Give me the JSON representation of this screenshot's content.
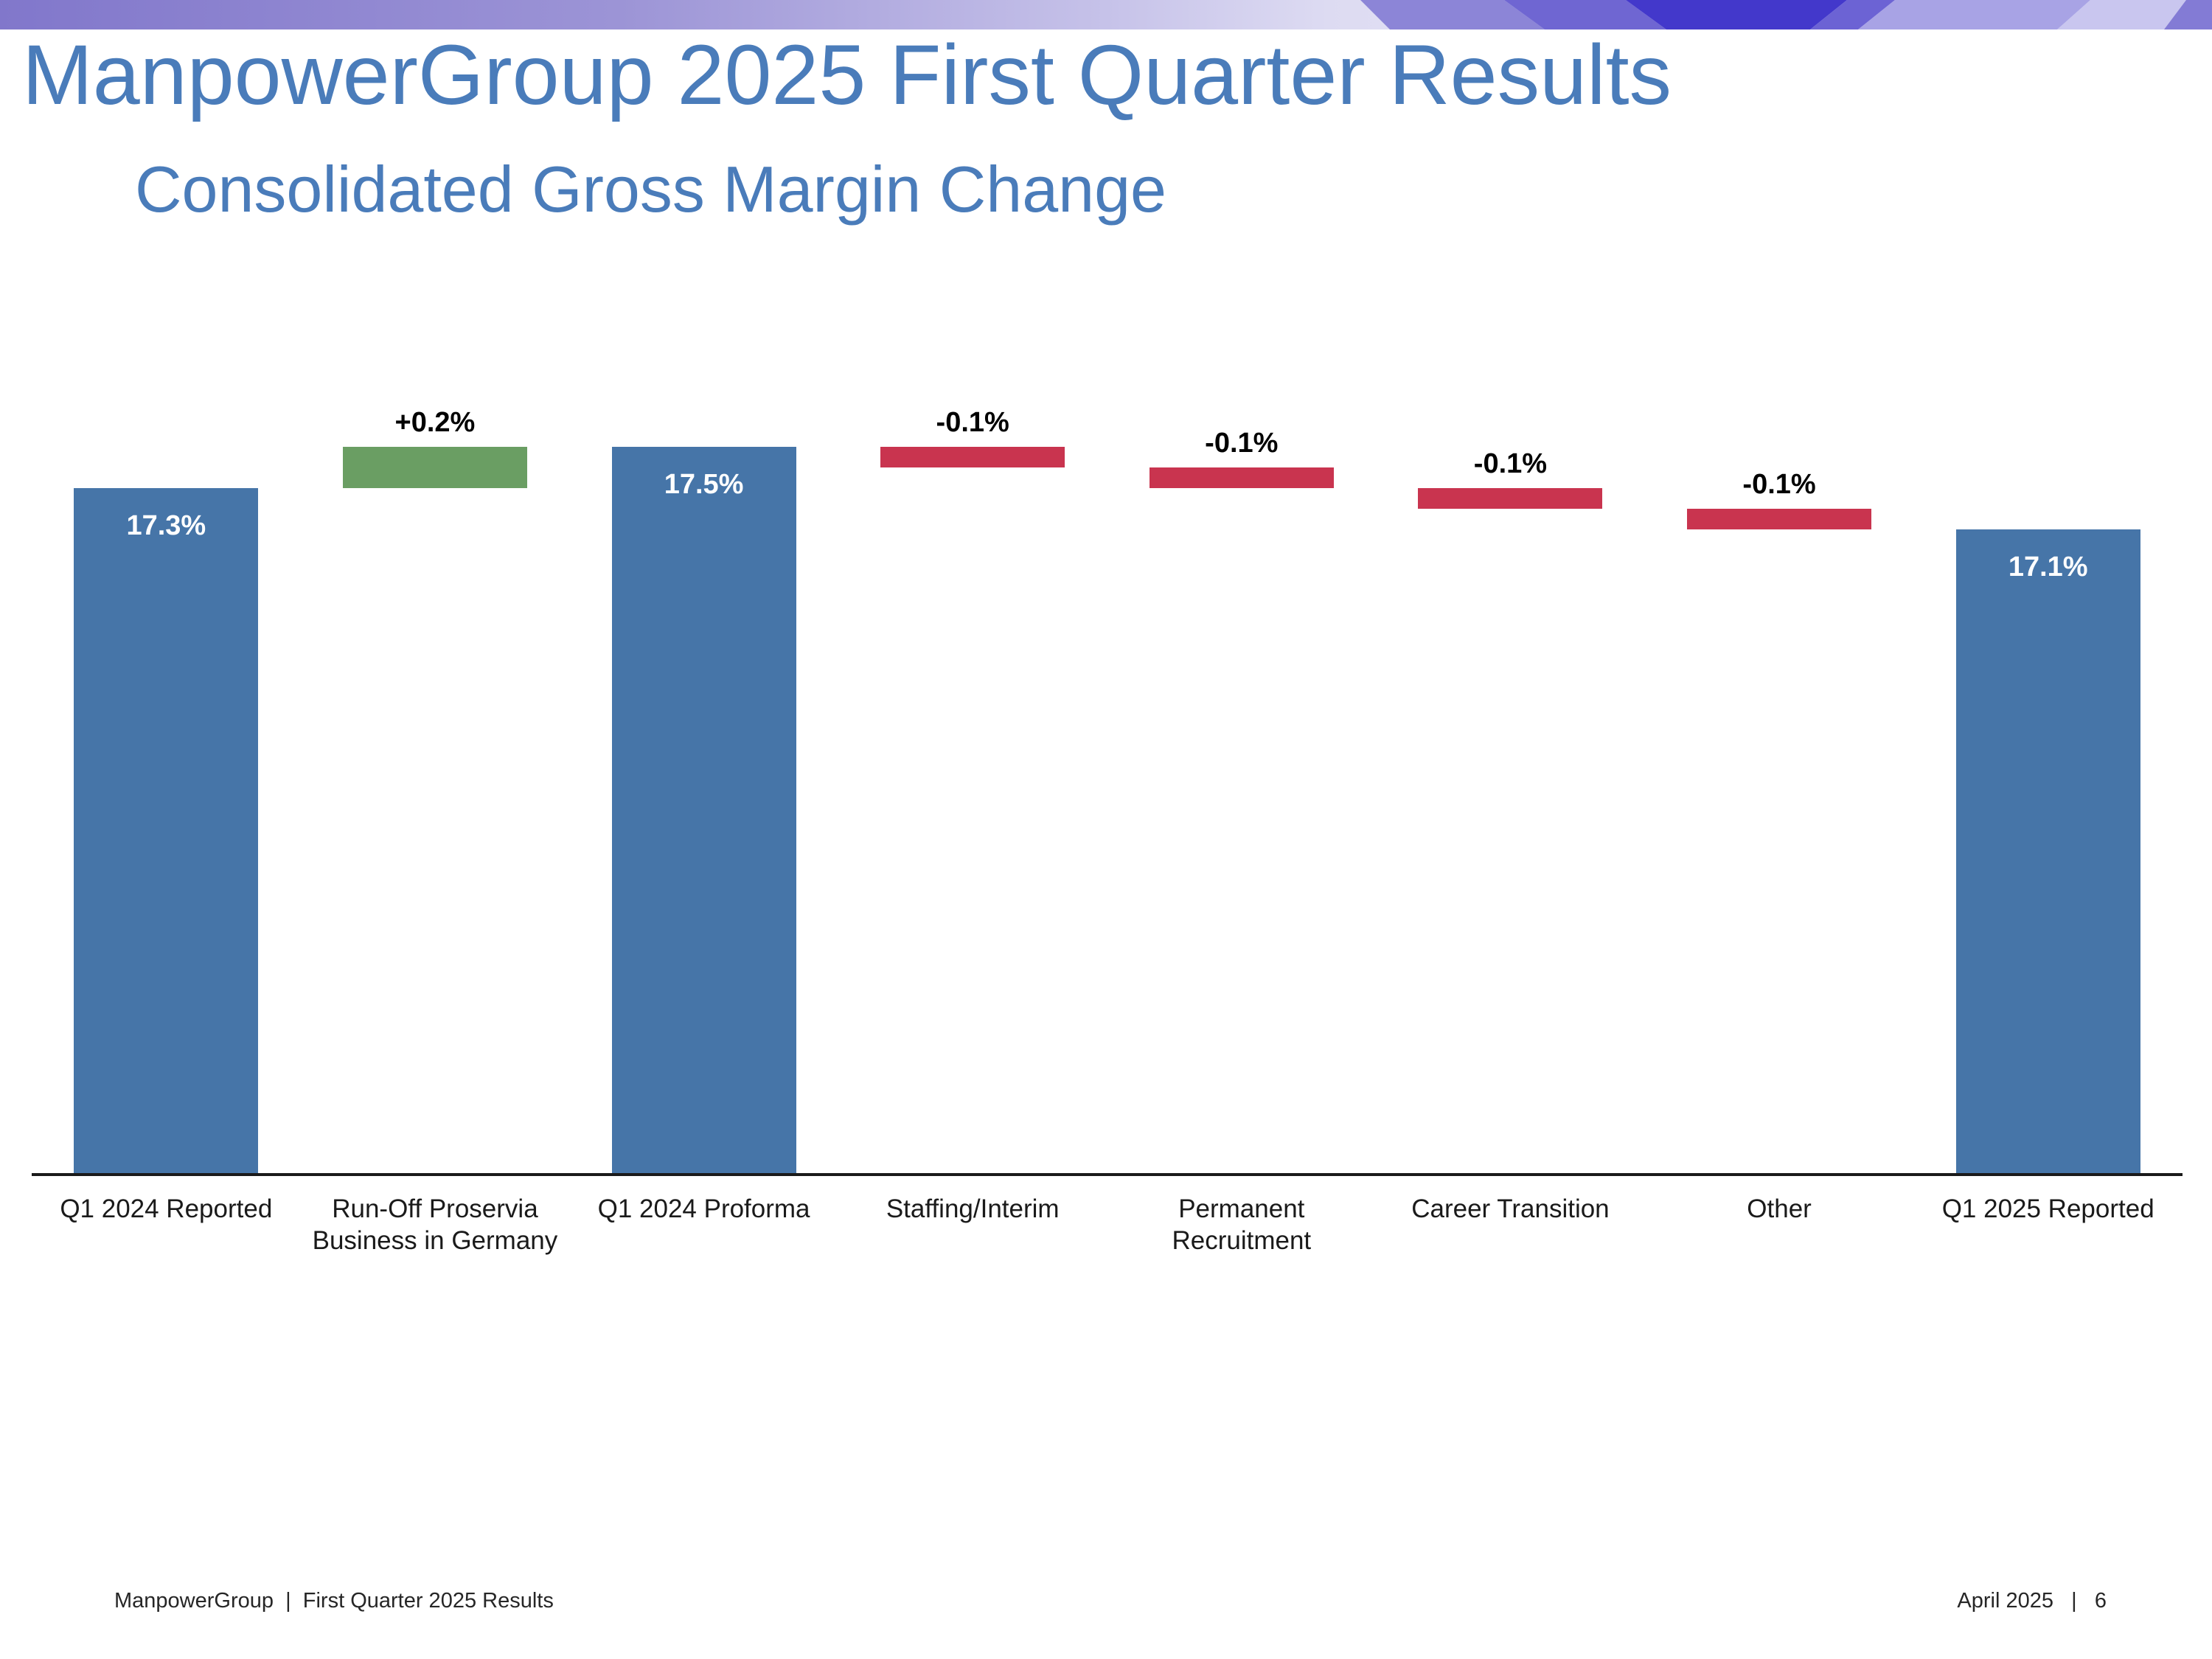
{
  "slide": {
    "title": "ManpowerGroup 2025 First Quarter Results",
    "subtitle": "Consolidated Gross Margin Change",
    "footer_left": "ManpowerGroup  |  First Quarter 2025 Results",
    "footer_right": "April 2025   |   6"
  },
  "colors": {
    "heading_blue": "#4A7CBA",
    "bar_blue": "#4675A8",
    "bar_green": "#6A9E63",
    "bar_red": "#C9344F",
    "axis_line": "#1A1A1A",
    "value_label_on_bar": "#FFFFFF",
    "value_label_delta": "#000000"
  },
  "banner": {
    "gradient_stops": [
      "#8177CB",
      "#9C94D6",
      "#CFCCEC",
      "#E2E0F4"
    ],
    "wedge_colors": [
      "#8C85D7",
      "#6F66D2",
      "#4338CB",
      "#6C63D4",
      "#A8A3E5",
      "#C9C6EF",
      "#837BD5"
    ]
  },
  "chart_data": {
    "type": "bar",
    "subtype": "waterfall",
    "title": "Consolidated Gross Margin Change",
    "unit": "%",
    "axis_range": [
      14.0,
      17.75
    ],
    "grid": false,
    "legend": false,
    "categories": [
      "Q1 2024 Reported",
      "Run-Off Proservia\nBusiness in Germany",
      "Q1 2024 Proforma",
      "Staffing/Interim",
      "Permanent\nRecruitment",
      "Career Transition",
      "Other",
      "Q1 2025 Reported"
    ],
    "bars": [
      {
        "category": "Q1 2024 Reported",
        "kind": "total",
        "value": 17.3,
        "label": "17.3%"
      },
      {
        "category": "Run-Off Proservia\nBusiness in Germany",
        "kind": "delta",
        "value": 0.2,
        "from": 17.3,
        "to": 17.5,
        "label": "+0.2%"
      },
      {
        "category": "Q1 2024 Proforma",
        "kind": "total",
        "value": 17.5,
        "label": "17.5%"
      },
      {
        "category": "Staffing/Interim",
        "kind": "delta",
        "value": -0.1,
        "from": 17.5,
        "to": 17.4,
        "label": "-0.1%"
      },
      {
        "category": "Permanent\nRecruitment",
        "kind": "delta",
        "value": -0.1,
        "from": 17.4,
        "to": 17.3,
        "label": "-0.1%"
      },
      {
        "category": "Career Transition",
        "kind": "delta",
        "value": -0.1,
        "from": 17.3,
        "to": 17.2,
        "label": "-0.1%"
      },
      {
        "category": "Other",
        "kind": "delta",
        "value": -0.1,
        "from": 17.2,
        "to": 17.1,
        "label": "-0.1%"
      },
      {
        "category": "Q1 2025 Reported",
        "kind": "total",
        "value": 17.1,
        "label": "17.1%"
      }
    ]
  }
}
